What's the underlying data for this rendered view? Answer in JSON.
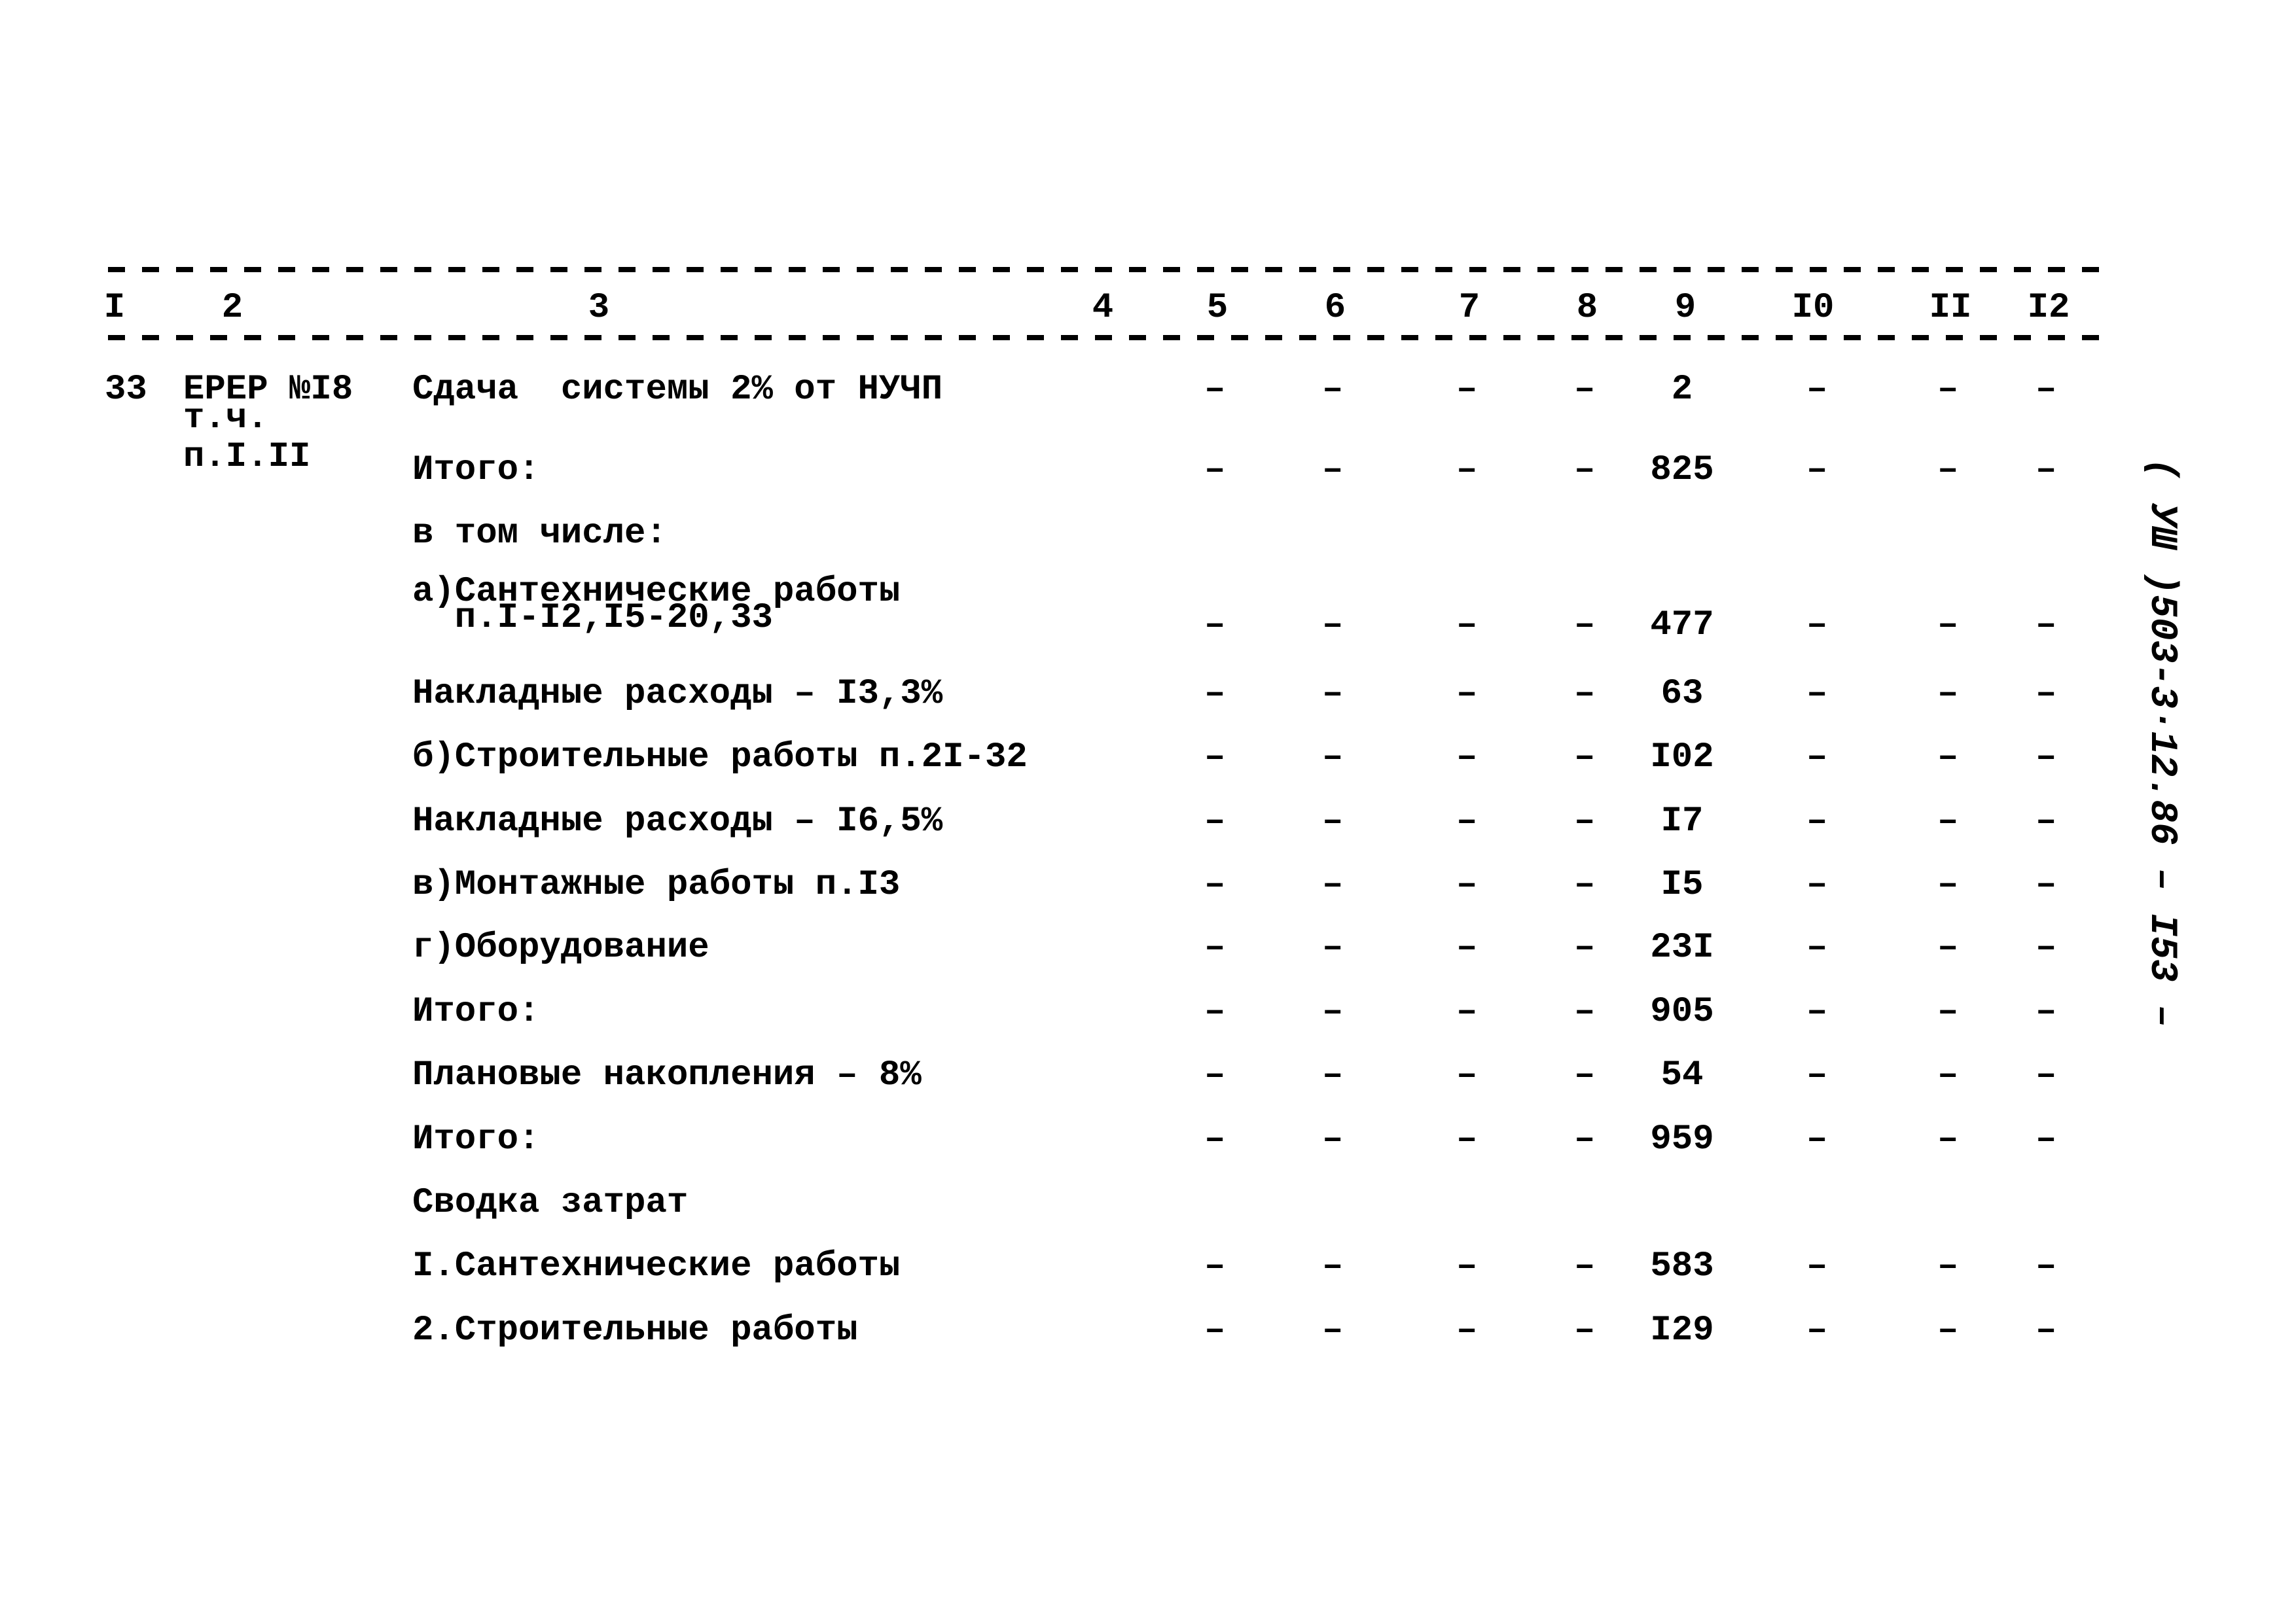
{
  "header": {
    "columns": [
      "I",
      "2",
      "3",
      "4",
      "5",
      "6",
      "7",
      "8",
      "9",
      "I0",
      "II",
      "I2"
    ]
  },
  "entry": {
    "number": "33",
    "code_line1": "ЕРЕР №I8",
    "code_line2": "т.ч.",
    "code_line3": "п.I.II"
  },
  "rows": [
    {
      "label": "Сдача  системы 2% от НУЧП",
      "cols": [
        "–",
        "–",
        "–",
        "–",
        "2",
        "–",
        "–",
        "–"
      ]
    },
    {
      "label": "Итого:",
      "cols": [
        "–",
        "–",
        "–",
        "–",
        "825",
        "–",
        "–",
        "–"
      ]
    },
    {
      "label": "в том числе:",
      "cols": [
        "",
        "",
        "",
        "",
        "",
        "",
        "",
        ""
      ]
    },
    {
      "label": "а)Сантехнические работы\n  п.I-I2,I5-20,33",
      "cols": [
        "–",
        "–",
        "–",
        "–",
        "477",
        "–",
        "–",
        "–"
      ]
    },
    {
      "label": "Накладные расходы – I3,3%",
      "cols": [
        "–",
        "–",
        "–",
        "–",
        "63",
        "–",
        "–",
        "–"
      ]
    },
    {
      "label": "б)Строительные работы п.2I-32",
      "cols": [
        "–",
        "–",
        "–",
        "–",
        "I02",
        "–",
        "–",
        "–"
      ]
    },
    {
      "label": "Накладные расходы – I6,5%",
      "cols": [
        "–",
        "–",
        "–",
        "–",
        "I7",
        "–",
        "–",
        "–"
      ]
    },
    {
      "label": "в)Монтажные работы п.I3",
      "cols": [
        "–",
        "–",
        "–",
        "–",
        "I5",
        "–",
        "–",
        "–"
      ]
    },
    {
      "label": "г)Оборудование",
      "cols": [
        "–",
        "–",
        "–",
        "–",
        "23I",
        "–",
        "–",
        "–"
      ]
    },
    {
      "label": "Итого:",
      "cols": [
        "–",
        "–",
        "–",
        "–",
        "905",
        "–",
        "–",
        "–"
      ]
    },
    {
      "label": "Плановые накопления – 8%",
      "cols": [
        "–",
        "–",
        "–",
        "–",
        "54",
        "–",
        "–",
        "–"
      ]
    },
    {
      "label": "Итого:",
      "cols": [
        "–",
        "–",
        "–",
        "–",
        "959",
        "–",
        "–",
        "–"
      ]
    },
    {
      "label": "Сводка затрат",
      "cols": [
        "",
        "",
        "",
        "",
        "",
        "",
        "",
        ""
      ]
    },
    {
      "label": "I.Сантехнические работы",
      "cols": [
        "–",
        "–",
        "–",
        "–",
        "583",
        "–",
        "–",
        "–"
      ]
    },
    {
      "label": "2.Строительные работы",
      "cols": [
        "–",
        "–",
        "–",
        "–",
        "I29",
        "–",
        "–",
        "–"
      ]
    }
  ],
  "side_stamp": "( УШ )503-3·12.86  – I53 –"
}
